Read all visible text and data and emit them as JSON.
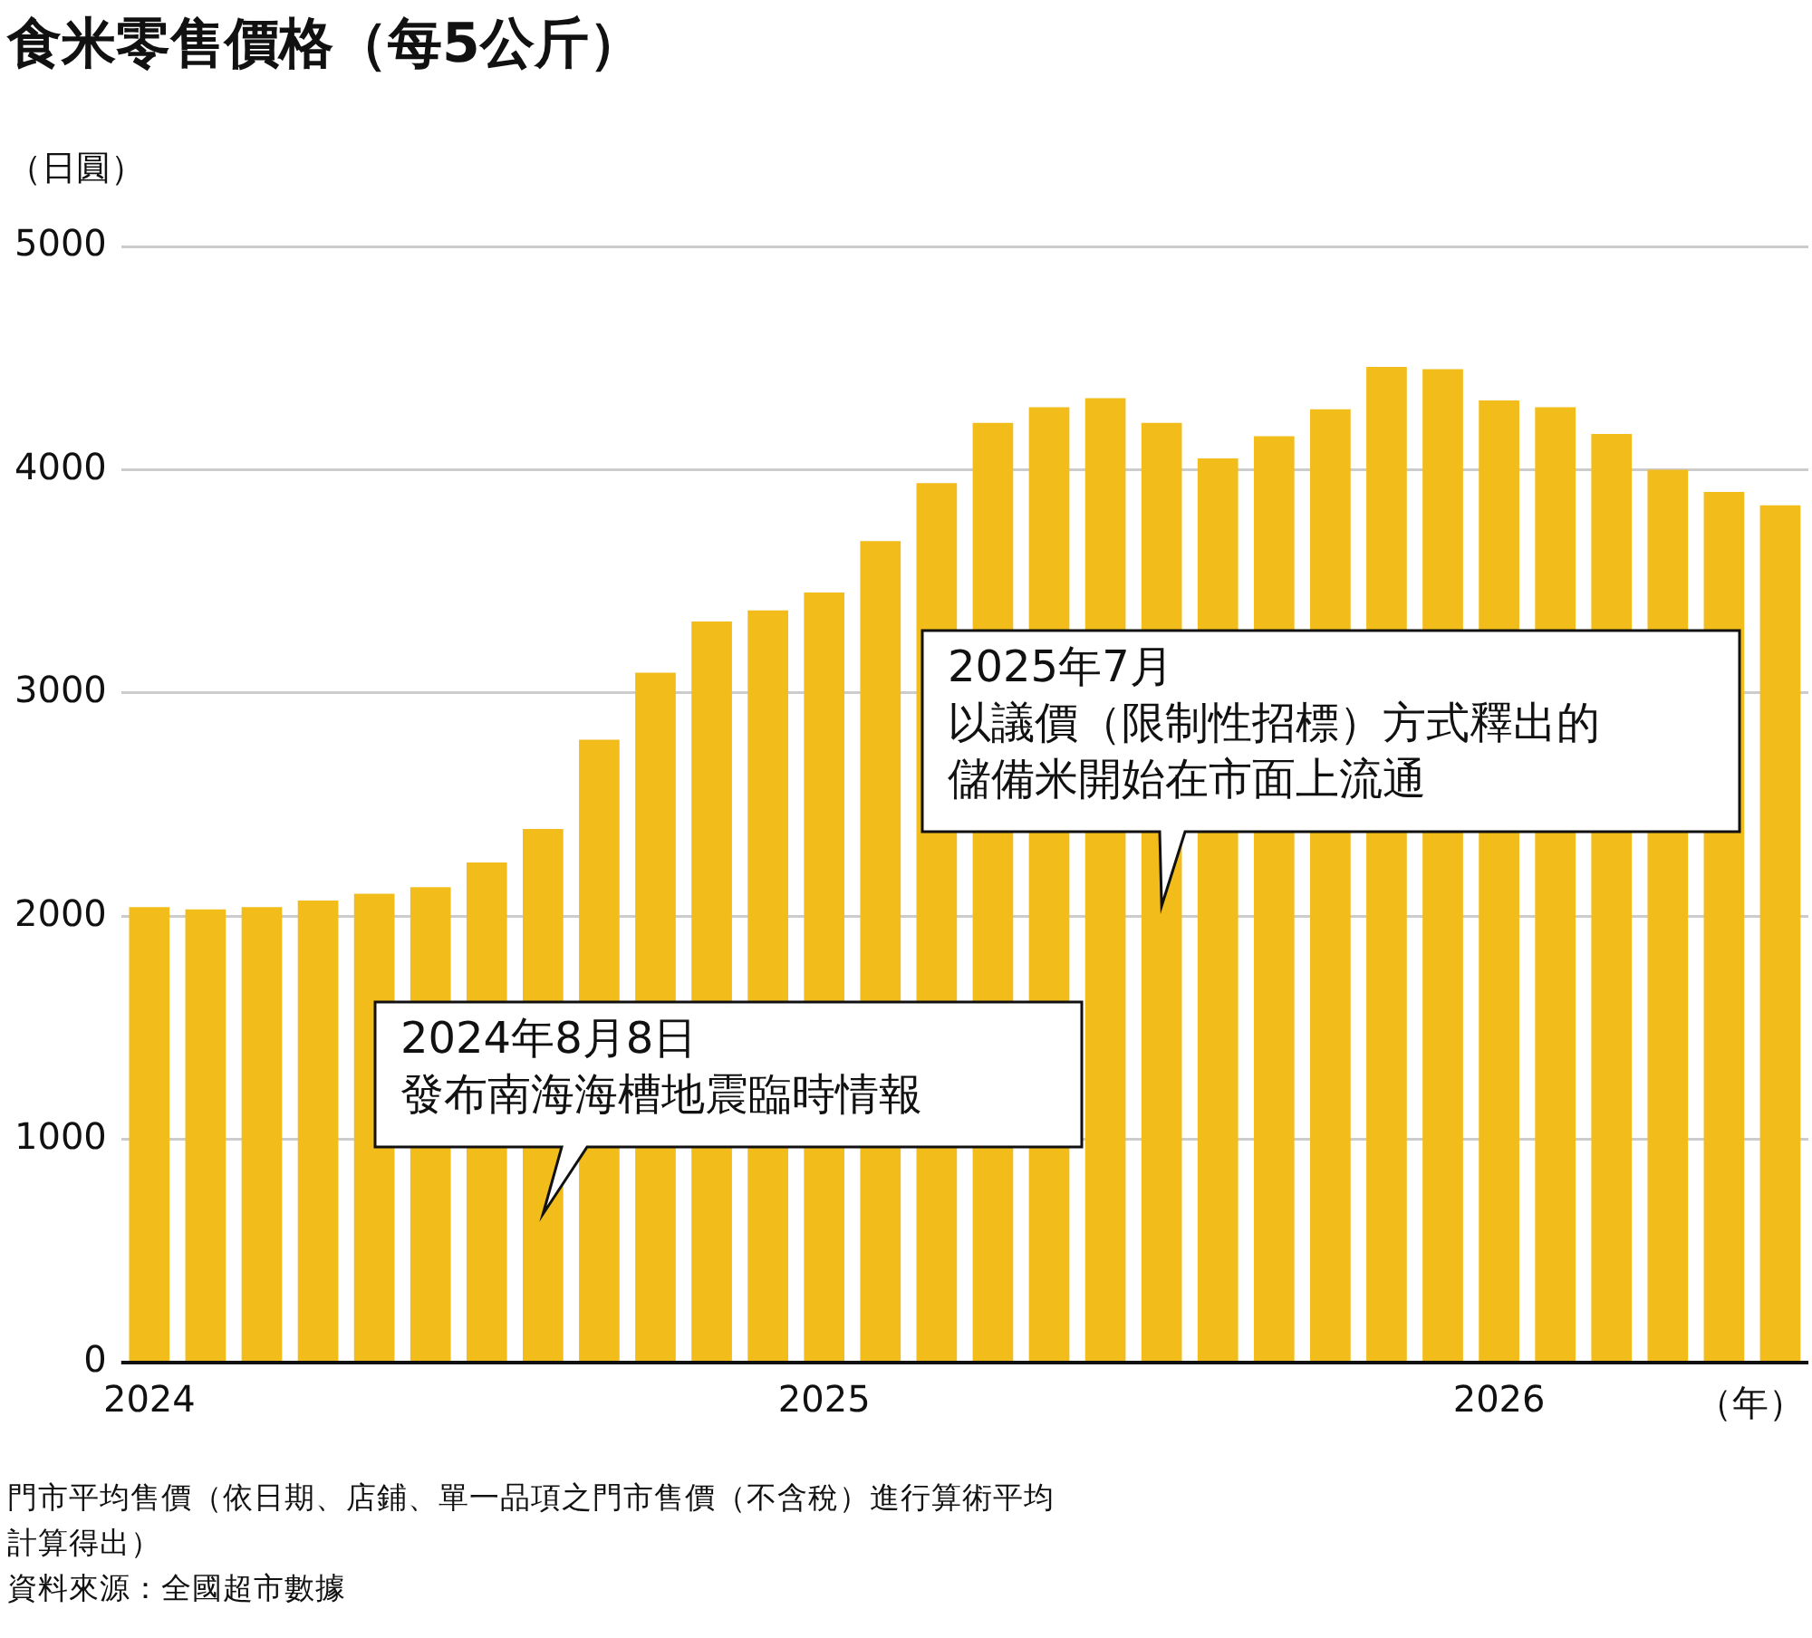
{
  "chart_data": {
    "type": "bar",
    "title": "食米零售價格（每5公斤）",
    "ylabel": "（日圓）",
    "xlabel": "（年）",
    "categories": [
      "2024",
      null,
      null,
      null,
      null,
      null,
      null,
      null,
      null,
      null,
      null,
      null,
      "2025",
      null,
      null,
      null,
      null,
      null,
      null,
      null,
      null,
      null,
      null,
      null,
      "2026",
      null,
      null,
      null,
      null,
      null
    ],
    "values": [
      2040,
      2030,
      2040,
      2070,
      2100,
      2130,
      2240,
      2390,
      2790,
      3090,
      3320,
      3370,
      3450,
      3680,
      3940,
      4210,
      4280,
      4320,
      4210,
      4050,
      4150,
      4270,
      4460,
      4450,
      4310,
      4280,
      4160,
      4000,
      3900,
      3840
    ],
    "color": "#f2bc1b",
    "ylim": [
      0,
      5000
    ],
    "yticks": [
      0,
      1000,
      2000,
      3000,
      4000,
      5000
    ],
    "grid": "y",
    "legend": false,
    "annotations": [
      "2024年8月8日",
      "發布南海海槽地震臨時情報",
      "2025年7月",
      "以議價（限制性招標）方式釋出的",
      "儲備米開始在市面上流通",
      "門市平均售價（依日期、店鋪、單一品項之門市售價（不含稅）進行算術平均計算得出）",
      "資料來源：全國超市數據"
    ]
  }
}
